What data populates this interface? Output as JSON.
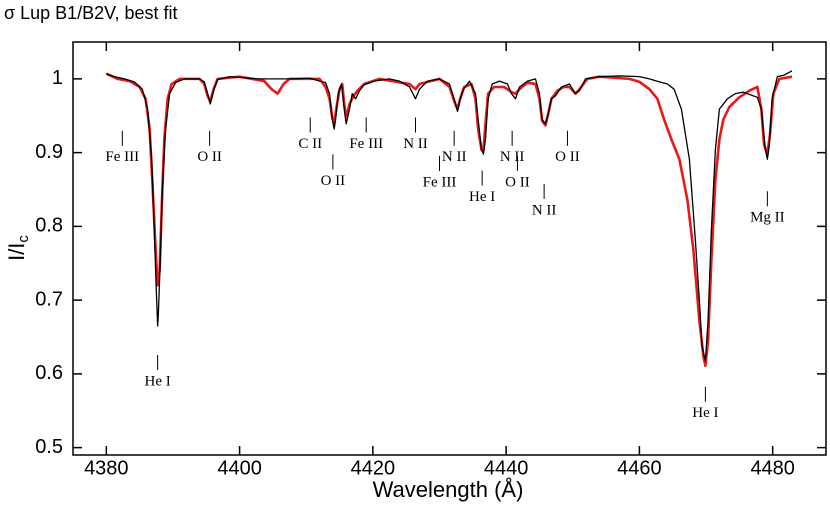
{
  "chart_data": {
    "type": "line",
    "title": "σ Lup  B1/B2V, best fit",
    "x_label": "Wavelength (Å)",
    "y_label": "I/I",
    "y_label_subscript": "c",
    "xlim": [
      4375,
      4488
    ],
    "ylim": [
      0.49,
      1.05
    ],
    "xticks": [
      4380,
      4400,
      4420,
      4440,
      4460,
      4480
    ],
    "yticks": [
      0.5,
      0.6,
      0.7,
      0.8,
      0.9,
      1
    ],
    "series": [
      {
        "color": "#000000",
        "x": [
          4380.0,
          4381.2,
          4382.7,
          4384.2,
          4385.4,
          4386.2,
          4386.8,
          4387.2,
          4387.5,
          4387.7,
          4387.8,
          4388.1,
          4388.4,
          4388.9,
          4389.5,
          4390.4,
          4391.7,
          4394.0,
          4394.7,
          4395.2,
          4395.6,
          4396.1,
          4396.7,
          4398.5,
          4403.0,
          4407.5,
          4410.5,
          4412.0,
          4412.9,
          4413.5,
          4413.9,
          4414.2,
          4414.5,
          4414.8,
          4415.3,
          4415.7,
          4416.0,
          4416.5,
          4416.9,
          4417.4,
          4418.0,
          4418.7,
          4420.2,
          4422.5,
          4424.0,
          4425.5,
          4426.4,
          4427.0,
          4428.2,
          4430.0,
          4431.5,
          4432.2,
          4432.7,
          4433.1,
          4433.6,
          4434.5,
          4435.4,
          4435.8,
          4436.3,
          4436.6,
          4436.9,
          4437.3,
          4437.9,
          4439.0,
          4440.2,
          4440.8,
          4441.4,
          4442.0,
          4443.2,
          4444.4,
          4445.0,
          4445.4,
          4445.9,
          4446.3,
          4446.8,
          4447.4,
          4448.3,
          4449.5,
          4450.4,
          4451.0,
          4451.9,
          4454.0,
          4457.0,
          4460.0,
          4461.5,
          4463.0,
          4464.2,
          4465.2,
          4466.3,
          4467.5,
          4468.4,
          4469.0,
          4469.4,
          4469.9,
          4470.3,
          4470.8,
          4471.4,
          4472.0,
          4473.2,
          4474.4,
          4475.6,
          4476.8,
          4477.7,
          4478.3,
          4478.9,
          4479.2,
          4479.5,
          4479.9,
          4480.7,
          4481.7,
          4482.9
        ],
        "values": [
          1.007,
          1.003,
          1.0,
          0.996,
          0.986,
          0.959,
          0.891,
          0.795,
          0.713,
          0.665,
          0.679,
          0.754,
          0.85,
          0.932,
          0.98,
          0.995,
          1.0,
          1.0,
          0.996,
          0.98,
          0.966,
          0.984,
          0.999,
          1.003,
          1.0,
          1.0,
          1.001,
          0.997,
          0.995,
          0.98,
          0.945,
          0.932,
          0.952,
          0.98,
          0.993,
          0.959,
          0.939,
          0.959,
          0.98,
          0.973,
          0.984,
          0.992,
          0.997,
          1.0,
          0.997,
          0.989,
          0.973,
          0.986,
          0.997,
          1.0,
          0.993,
          0.973,
          0.956,
          0.973,
          0.986,
          0.997,
          0.98,
          0.945,
          0.904,
          0.898,
          0.918,
          0.973,
          0.993,
          0.997,
          0.993,
          0.98,
          0.973,
          0.989,
          0.997,
          1.0,
          0.98,
          0.945,
          0.939,
          0.952,
          0.973,
          0.977,
          0.989,
          0.993,
          0.98,
          0.984,
          1.0,
          1.003,
          1.004,
          1.003,
          1.0,
          0.996,
          0.993,
          0.986,
          0.959,
          0.891,
          0.781,
          0.699,
          0.638,
          0.617,
          0.672,
          0.795,
          0.904,
          0.959,
          0.973,
          0.98,
          0.982,
          0.978,
          0.975,
          0.959,
          0.904,
          0.891,
          0.911,
          0.973,
          1.003,
          1.005,
          1.011
        ]
      },
      {
        "color": "#e8191a",
        "x": [
          4380.0,
          4381.7,
          4383.5,
          4385.0,
          4385.9,
          4386.5,
          4386.9,
          4387.4,
          4387.7,
          4388.0,
          4388.3,
          4388.7,
          4389.2,
          4389.8,
          4391.0,
          4394.0,
          4394.7,
          4395.2,
          4395.6,
          4396.1,
          4396.7,
          4400.0,
          4403.7,
          4404.8,
          4405.7,
          4406.6,
          4407.5,
          4412.0,
          4412.9,
          4413.5,
          4413.9,
          4414.2,
          4414.5,
          4415.0,
          4415.4,
          4415.7,
          4416.0,
          4416.5,
          4417.1,
          4417.7,
          4418.7,
          4421.0,
          4425.5,
          4426.4,
          4427.0,
          4430.0,
          4431.5,
          4432.2,
          4432.7,
          4433.1,
          4433.7,
          4434.8,
          4435.4,
          4435.8,
          4436.3,
          4436.6,
          4436.9,
          4437.3,
          4438.2,
          4439.7,
          4440.8,
          4441.4,
          4442.0,
          4443.2,
          4444.4,
          4445.0,
          4445.4,
          4445.9,
          4446.3,
          4446.8,
          4447.7,
          4448.6,
          4449.5,
          4450.4,
          4451.0,
          4452.2,
          4454.0,
          4458.5,
          4460.0,
          4461.5,
          4462.7,
          4463.7,
          4464.8,
          4466.0,
          4467.2,
          4468.1,
          4469.0,
          4469.6,
          4469.9,
          4470.3,
          4470.8,
          4471.4,
          4472.0,
          4472.6,
          4473.5,
          4475.0,
          4476.5,
          4477.7,
          4478.3,
          4478.7,
          4479.2,
          4479.6,
          4480.1,
          4481.0,
          4482.9
        ],
        "values": [
          1.007,
          1.0,
          0.997,
          0.989,
          0.973,
          0.932,
          0.863,
          0.768,
          0.72,
          0.74,
          0.822,
          0.918,
          0.973,
          0.993,
          1.0,
          1.0,
          0.993,
          0.977,
          0.969,
          0.986,
          1.0,
          1.003,
          0.997,
          0.986,
          0.98,
          0.993,
          1.0,
          1.0,
          0.989,
          0.973,
          0.948,
          0.939,
          0.959,
          0.986,
          0.993,
          0.966,
          0.948,
          0.966,
          0.977,
          0.984,
          0.993,
          1.0,
          0.993,
          0.986,
          0.993,
          1.0,
          0.989,
          0.97,
          0.959,
          0.973,
          0.989,
          0.993,
          0.973,
          0.932,
          0.904,
          0.904,
          0.939,
          0.98,
          0.989,
          0.989,
          0.982,
          0.98,
          0.986,
          0.995,
          0.993,
          0.973,
          0.943,
          0.937,
          0.952,
          0.973,
          0.984,
          0.989,
          0.989,
          0.98,
          0.986,
          1.0,
          1.003,
          1.0,
          0.996,
          0.986,
          0.973,
          0.945,
          0.918,
          0.891,
          0.836,
          0.768,
          0.672,
          0.624,
          0.611,
          0.645,
          0.754,
          0.863,
          0.918,
          0.945,
          0.962,
          0.975,
          0.984,
          0.989,
          0.959,
          0.911,
          0.898,
          0.925,
          0.98,
          1.0,
          1.003
        ]
      }
    ],
    "annotations": [
      {
        "text": "Fe III",
        "x": 4382.4,
        "y": 0.893
      },
      {
        "text": "O II",
        "x": 4395.5,
        "y": 0.893
      },
      {
        "text": "C II",
        "x": 4410.6,
        "y": 0.911
      },
      {
        "text": "O II",
        "x": 4414.0,
        "y": 0.861
      },
      {
        "text": "Fe III",
        "x": 4419.0,
        "y": 0.911
      },
      {
        "text": "N II",
        "x": 4426.4,
        "y": 0.911
      },
      {
        "text": "Fe III",
        "x": 4430.0,
        "y": 0.859
      },
      {
        "text": "N II",
        "x": 4432.2,
        "y": 0.893
      },
      {
        "text": "He I",
        "x": 4436.4,
        "y": 0.839
      },
      {
        "text": "N II",
        "x": 4440.9,
        "y": 0.893
      },
      {
        "text": "O II",
        "x": 4441.7,
        "y": 0.859
      },
      {
        "text": "N II",
        "x": 4445.7,
        "y": 0.821
      },
      {
        "text": "O II",
        "x": 4449.2,
        "y": 0.893
      },
      {
        "text": "Mg II",
        "x": 4479.2,
        "y": 0.811
      },
      {
        "text": "He I",
        "x": 4387.7,
        "y": 0.589
      },
      {
        "text": "He I",
        "x": 4469.9,
        "y": 0.546
      }
    ]
  }
}
